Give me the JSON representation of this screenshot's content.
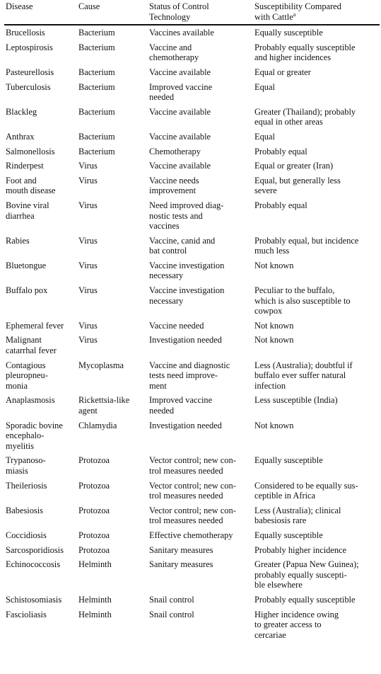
{
  "headers": {
    "disease": "Disease",
    "cause": "Cause",
    "status": "Status of Control\nTechnology",
    "susceptibility": "Susceptibility Compared\nwith Cattle",
    "susceptibility_note": "a"
  },
  "rows": [
    {
      "disease": "Brucellosis",
      "cause": "Bacterium",
      "status": "Vaccines available",
      "susceptibility": "Equally susceptible"
    },
    {
      "disease": "Leptospirosis",
      "cause": "Bacterium",
      "status": "Vaccine and\nchemotherapy",
      "susceptibility": "Probably equally susceptible\nand higher incidences"
    },
    {
      "disease": "Pasteurellosis",
      "cause": "Bacterium",
      "status": "Vaccine available",
      "susceptibility": "Equal or greater"
    },
    {
      "disease": "Tuberculosis",
      "cause": "Bacterium",
      "status": "Improved vaccine\nneeded",
      "susceptibility": "Equal"
    },
    {
      "disease": "Blackleg",
      "cause": "Bacterium",
      "status": "Vaccine available",
      "susceptibility": "Greater (Thailand); probably\nequal in other areas"
    },
    {
      "disease": "Anthrax",
      "cause": "Bacterium",
      "status": "Vaccine available",
      "susceptibility": "Equal"
    },
    {
      "disease": "Salmonellosis",
      "cause": "Bacterium",
      "status": "Chemotherapy",
      "susceptibility": "Probably equal"
    },
    {
      "disease": "Rinderpest",
      "cause": "Virus",
      "status": "Vaccine available",
      "susceptibility": "Equal or greater (Iran)"
    },
    {
      "disease": "Foot and\nmouth disease",
      "cause": "Virus",
      "status": "Vaccine needs\nimprovement",
      "susceptibility": "Equal, but generally less\nsevere"
    },
    {
      "disease": "Bovine viral\ndiarrhea",
      "cause": "Virus",
      "status": "Need improved diag-\nnostic tests and\nvaccines",
      "susceptibility": "Probably equal"
    },
    {
      "disease": "Rabies",
      "cause": "Virus",
      "status": "Vaccine, canid and\nbat control",
      "susceptibility": "Probably equal, but incidence\nmuch less"
    },
    {
      "disease": "Bluetongue",
      "cause": "Virus",
      "status": "Vaccine investigation\nnecessary",
      "susceptibility": "Not known"
    },
    {
      "disease": "Buffalo pox",
      "cause": "Virus",
      "status": "Vaccine investigation\nnecessary",
      "susceptibility": "Peculiar to the buffalo,\nwhich is also susceptible to\ncowpox"
    },
    {
      "disease": "Ephemeral fever",
      "cause": "Virus",
      "status": "Vaccine needed",
      "susceptibility": "Not known"
    },
    {
      "disease": "Malignant\ncatarrhal fever",
      "cause": "Virus",
      "status": "Investigation needed",
      "susceptibility": "Not known"
    },
    {
      "disease": "Contagious\npleuropneu-\nmonia",
      "cause": "Mycoplasma",
      "status": "Vaccine and diagnostic\ntests need improve-\nment",
      "susceptibility": "Less (Australia); doubtful if\nbuffalo ever suffer natural\ninfection"
    },
    {
      "disease": "Anaplasmosis",
      "cause": "Rickettsia-like\nagent",
      "status": "Improved vaccine\nneeded",
      "susceptibility": "Less susceptible (India)"
    },
    {
      "disease": "Sporadic bovine\nencephalo-\nmyelitis",
      "cause": "Chlamydia",
      "status": "Investigation needed",
      "susceptibility": "Not known"
    },
    {
      "disease": "Trypanoso-\nmiasis",
      "cause": "Protozoa",
      "status": "Vector control; new con-\ntrol measures needed",
      "susceptibility": "Equally susceptible"
    },
    {
      "disease": "Theileriosis",
      "cause": "Protozoa",
      "status": "Vector control; new con-\ntrol measures needed",
      "susceptibility": "Considered to be equally sus-\nceptible in Africa"
    },
    {
      "disease": "Babesiosis",
      "cause": "Protozoa",
      "status": "Vector control; new con-\ntrol measures needed",
      "susceptibility": "Less (Australia); clinical\nbabesiosis rare"
    },
    {
      "disease": "Coccidiosis",
      "cause": "Protozoa",
      "status": "Effective chemotherapy",
      "susceptibility": "Equally susceptible"
    },
    {
      "disease": "Sarcosporidiosis",
      "cause": "Protozoa",
      "status": "Sanitary measures",
      "susceptibility": "Probably higher incidence"
    },
    {
      "disease": "Echinococcosis",
      "cause": "Helminth",
      "status": "Sanitary measures",
      "susceptibility": "Greater (Papua New Guinea);\nprobably equally suscepti-\nble elsewhere"
    },
    {
      "disease": "Schistosomiasis",
      "cause": "Helminth",
      "status": "Snail control",
      "susceptibility": "Probably equally susceptible"
    },
    {
      "disease": "Fascioliasis",
      "cause": "Helminth",
      "status": "Snail control",
      "susceptibility": "Higher incidence owing\nto greater access to\ncercariae"
    }
  ]
}
